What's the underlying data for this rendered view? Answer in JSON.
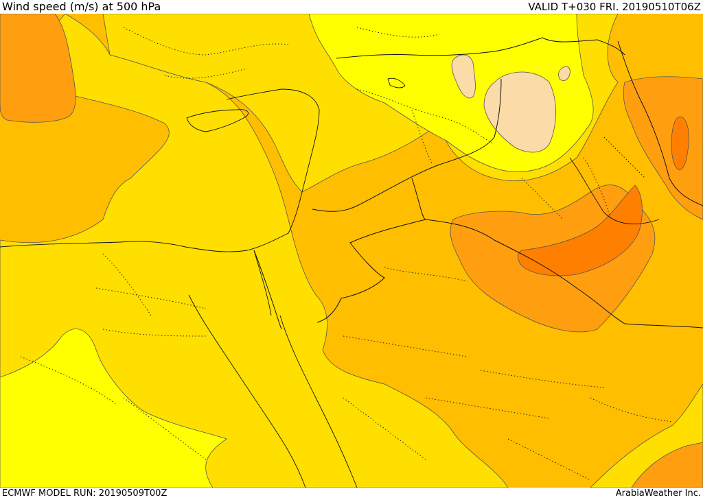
{
  "header": {
    "title": "Wind speed (m/s) at 500 hPa",
    "valid": "VALID T+030 FRI. 20190510T06Z"
  },
  "footer": {
    "model_run": "ECMWF MODEL RUN: 20190509T00Z",
    "credit": "ArabiaWeather Inc."
  },
  "map": {
    "field": "wind-speed-500hpa",
    "fill_colors": {
      "pale-peach": "#fbdba8",
      "yellow-light": "#ffff00",
      "yellow": "#ffdf00",
      "amber": "#ffbe00",
      "orange": "#ff9f10",
      "dark-orange": "#ff7f00"
    }
  }
}
